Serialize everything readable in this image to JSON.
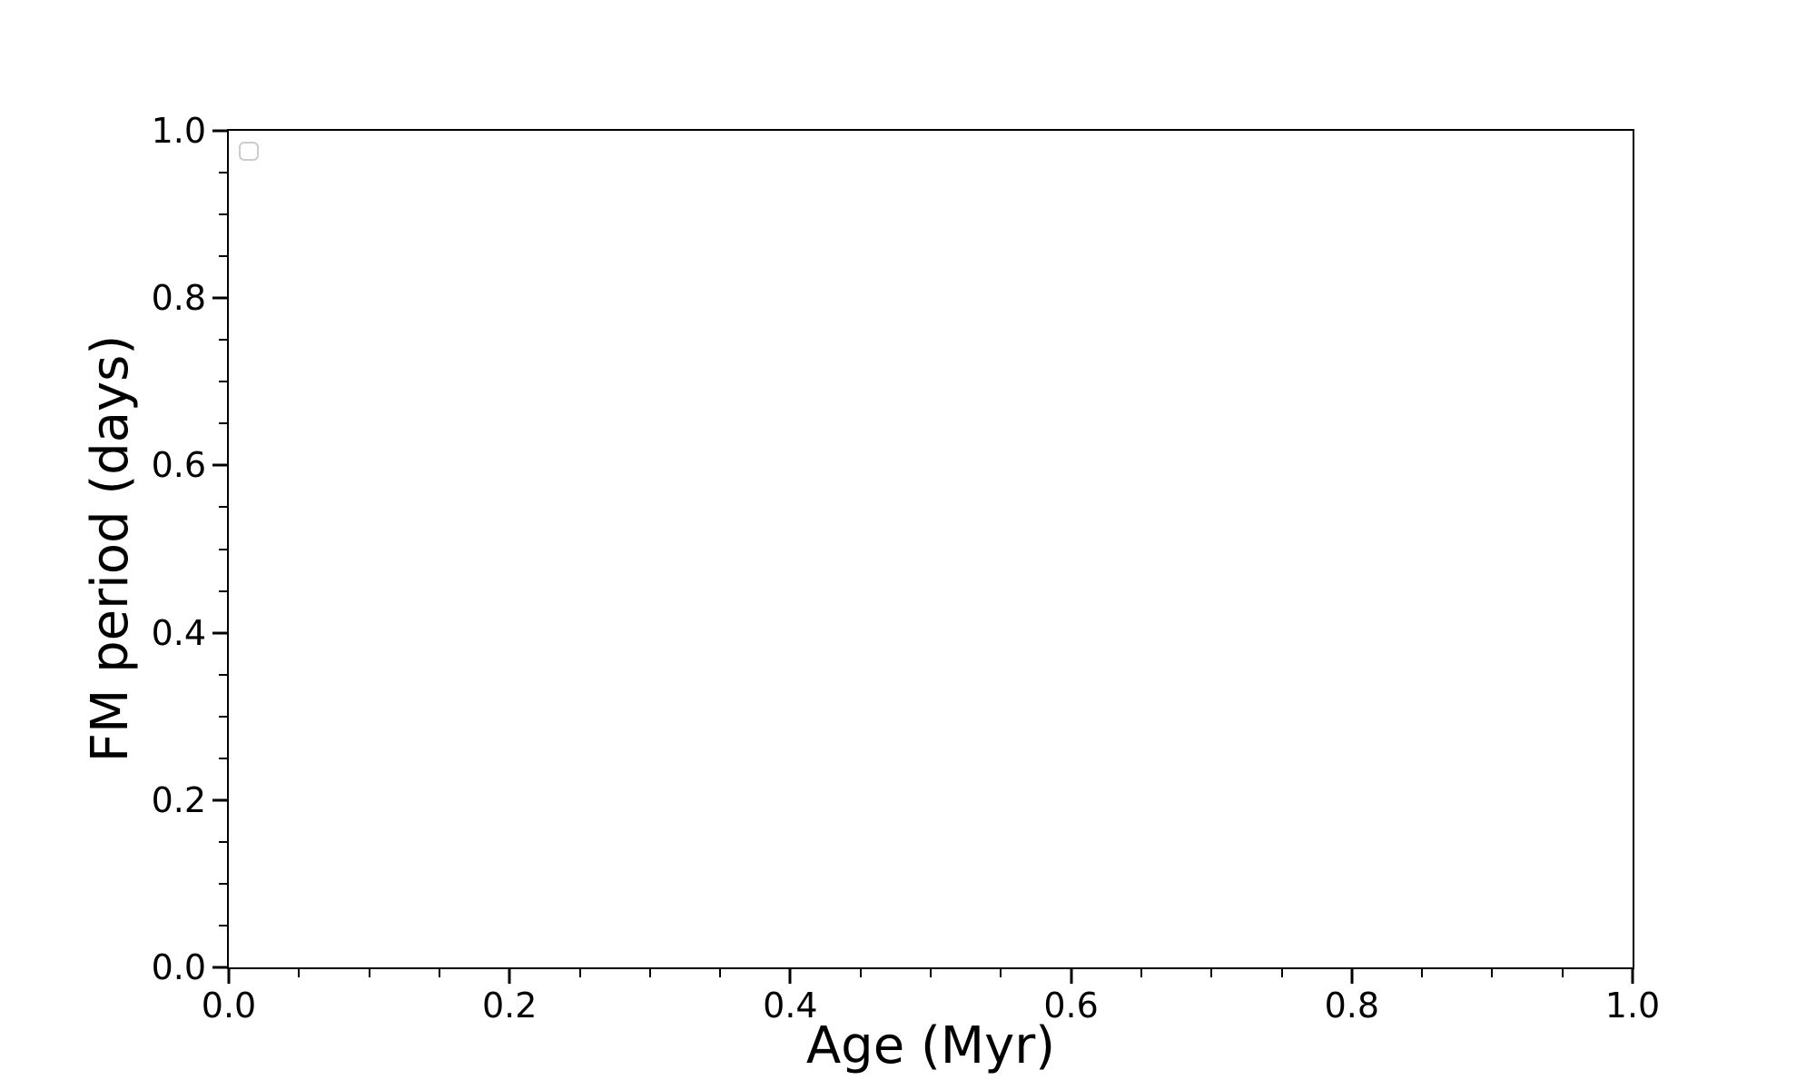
{
  "colors": {
    "background": "#ffffff",
    "text": "#000000",
    "spine": "#000000",
    "tick": "#000000",
    "legend_border": "#cccccc"
  },
  "chart_data": {
    "type": "scatter",
    "title": "",
    "xlabel": "Age (Myr)",
    "ylabel": "FM period (days)",
    "xlim": [
      0.0,
      1.0
    ],
    "ylim": [
      0.0,
      1.0
    ],
    "xticks": [
      0.0,
      0.2,
      0.4,
      0.6,
      0.8,
      1.0
    ],
    "yticks": [
      0.0,
      0.2,
      0.4,
      0.6,
      0.8,
      1.0
    ],
    "xtick_labels": [
      "0.0",
      "0.2",
      "0.4",
      "0.6",
      "0.8",
      "1.0"
    ],
    "ytick_labels": [
      "0.0",
      "0.2",
      "0.4",
      "0.6",
      "0.8",
      "1.0"
    ],
    "minor_tick_subdivisions": 4,
    "tick_direction": "out",
    "grid": false,
    "legend": {
      "visible": true,
      "position": "upper-left",
      "entries": []
    },
    "series": []
  }
}
